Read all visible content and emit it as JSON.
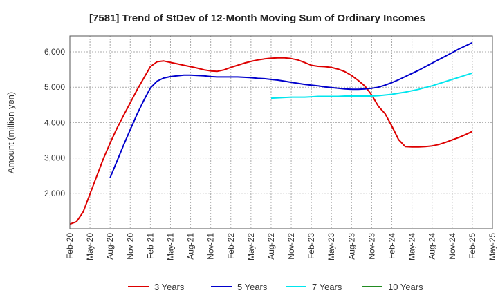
{
  "chart_data": {
    "type": "line",
    "title": "[7581]  Trend of StDev of 12-Month Moving Sum of Ordinary Incomes",
    "xlabel": "",
    "ylabel": "Amount (million yen)",
    "x_ticks": [
      "Feb-20",
      "May-20",
      "Aug-20",
      "Nov-20",
      "Feb-21",
      "May-21",
      "Aug-21",
      "Nov-21",
      "Feb-22",
      "May-22",
      "Aug-22",
      "Nov-22",
      "Feb-23",
      "May-23",
      "Aug-23",
      "Nov-23",
      "Feb-24",
      "May-24",
      "Aug-24",
      "Nov-24",
      "Feb-25",
      "May-25"
    ],
    "y_ticks": [
      2000,
      3000,
      4000,
      5000,
      6000
    ],
    "y_tick_labels": [
      "2,000",
      "3,000",
      "4,000",
      "5,000",
      "6,000"
    ],
    "ylim": [
      1000,
      6450
    ],
    "x_start": "2020-02",
    "x_end": "2025-05",
    "grid": true,
    "legend_position": "bottom",
    "series": [
      {
        "name": "3 Years",
        "color": "#dd0000",
        "x": [
          "2020-02",
          "2020-03",
          "2020-04",
          "2020-05",
          "2020-06",
          "2020-07",
          "2020-08",
          "2020-09",
          "2020-10",
          "2020-11",
          "2020-12",
          "2021-01",
          "2021-02",
          "2021-03",
          "2021-04",
          "2021-05",
          "2021-06",
          "2021-07",
          "2021-08",
          "2021-09",
          "2021-10",
          "2021-11",
          "2021-12",
          "2022-01",
          "2022-02",
          "2022-03",
          "2022-04",
          "2022-05",
          "2022-06",
          "2022-07",
          "2022-08",
          "2022-09",
          "2022-10",
          "2022-11",
          "2022-12",
          "2023-01",
          "2023-02",
          "2023-03",
          "2023-04",
          "2023-05",
          "2023-06",
          "2023-07",
          "2023-08",
          "2023-09",
          "2023-10",
          "2023-11",
          "2023-12",
          "2024-01",
          "2024-02",
          "2024-03",
          "2024-04",
          "2024-05",
          "2024-06",
          "2024-07",
          "2024-08",
          "2024-09",
          "2024-10",
          "2024-11",
          "2024-12",
          "2025-01",
          "2025-02"
        ],
        "values": [
          1130,
          1200,
          1480,
          1980,
          2480,
          2980,
          3420,
          3830,
          4200,
          4560,
          4920,
          5250,
          5580,
          5720,
          5740,
          5700,
          5660,
          5620,
          5580,
          5540,
          5490,
          5460,
          5450,
          5490,
          5560,
          5620,
          5680,
          5730,
          5770,
          5800,
          5820,
          5830,
          5830,
          5810,
          5770,
          5700,
          5620,
          5590,
          5580,
          5560,
          5510,
          5440,
          5330,
          5190,
          5030,
          4780,
          4460,
          4250,
          3900,
          3520,
          3320,
          3310,
          3310,
          3320,
          3340,
          3380,
          3440,
          3510,
          3580,
          3660,
          3750
        ]
      },
      {
        "name": "5 Years",
        "color": "#0000cc",
        "x": [
          "2020-08",
          "2020-09",
          "2020-10",
          "2020-11",
          "2020-12",
          "2021-01",
          "2021-02",
          "2021-03",
          "2021-04",
          "2021-05",
          "2021-06",
          "2021-07",
          "2021-08",
          "2021-09",
          "2021-10",
          "2021-11",
          "2021-12",
          "2022-01",
          "2022-02",
          "2022-03",
          "2022-04",
          "2022-05",
          "2022-06",
          "2022-07",
          "2022-08",
          "2022-09",
          "2022-10",
          "2022-11",
          "2022-12",
          "2023-01",
          "2023-02",
          "2023-03",
          "2023-04",
          "2023-05",
          "2023-06",
          "2023-07",
          "2023-08",
          "2023-09",
          "2023-10",
          "2023-11",
          "2023-12",
          "2024-01",
          "2024-02",
          "2024-03",
          "2024-04",
          "2024-05",
          "2024-06",
          "2024-07",
          "2024-08",
          "2024-09",
          "2024-10",
          "2024-11",
          "2024-12",
          "2025-01",
          "2025-02"
        ],
        "values": [
          2440,
          2900,
          3360,
          3800,
          4230,
          4620,
          4980,
          5170,
          5260,
          5300,
          5320,
          5340,
          5340,
          5330,
          5320,
          5300,
          5290,
          5290,
          5290,
          5290,
          5280,
          5270,
          5250,
          5240,
          5220,
          5200,
          5170,
          5140,
          5110,
          5080,
          5060,
          5040,
          5010,
          4990,
          4970,
          4950,
          4940,
          4940,
          4950,
          4970,
          5000,
          5060,
          5130,
          5210,
          5300,
          5390,
          5480,
          5580,
          5680,
          5780,
          5880,
          5980,
          6080,
          6170,
          6260
        ]
      },
      {
        "name": "7 Years",
        "color": "#00e5ee",
        "x": [
          "2022-08",
          "2022-09",
          "2022-10",
          "2022-11",
          "2022-12",
          "2023-01",
          "2023-02",
          "2023-03",
          "2023-04",
          "2023-05",
          "2023-06",
          "2023-07",
          "2023-08",
          "2023-09",
          "2023-10",
          "2023-11",
          "2023-12",
          "2024-01",
          "2024-02",
          "2024-03",
          "2024-04",
          "2024-05",
          "2024-06",
          "2024-07",
          "2024-08",
          "2024-09",
          "2024-10",
          "2024-11",
          "2024-12",
          "2025-01",
          "2025-02"
        ],
        "values": [
          4690,
          4700,
          4710,
          4720,
          4720,
          4720,
          4730,
          4740,
          4740,
          4740,
          4740,
          4750,
          4750,
          4750,
          4750,
          4750,
          4760,
          4780,
          4800,
          4830,
          4860,
          4900,
          4940,
          4990,
          5040,
          5100,
          5160,
          5220,
          5280,
          5340,
          5400
        ]
      },
      {
        "name": "10 Years",
        "color": "#228b22",
        "x": [],
        "values": []
      }
    ]
  }
}
